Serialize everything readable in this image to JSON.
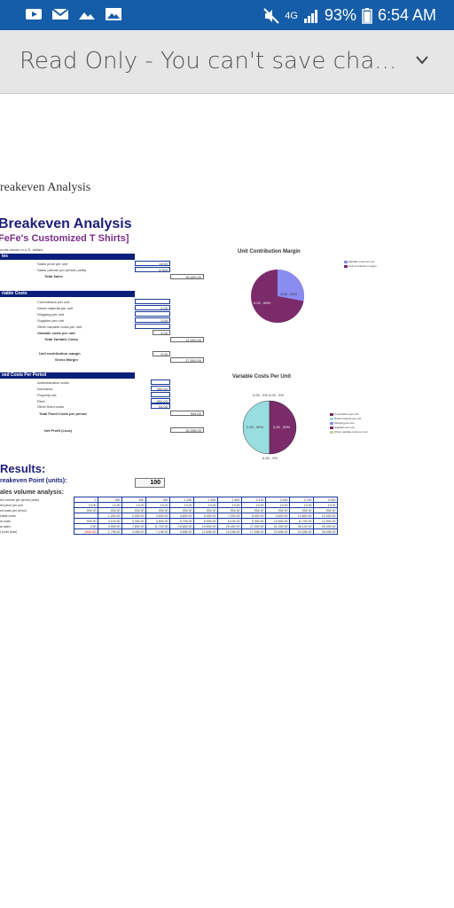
{
  "status_bar": {
    "network": "4G",
    "battery": "93%",
    "time": "6:54 AM"
  },
  "app_bar": {
    "title": "Read Only - You can't save cha..."
  },
  "doc": {
    "page_title": "reakeven Analysis",
    "heading": "Breakeven Analysis",
    "subtitle": "FeFe's Customized T Shirts]",
    "amounts_note": "ounts shown in U.S. dollars",
    "sales": {
      "header": "les",
      "price_label": "Sales price per unit",
      "price_value": "13.00",
      "volume_label": "Sales volume per period (units)",
      "volume_value": "3,000",
      "total_label": "Total Sales",
      "total_value": "39,000.00"
    },
    "variable": {
      "header": "riable Costs",
      "labels": [
        "Commission per unit",
        "Direct material per unit",
        "Shipping per unit",
        "Supplies per unit",
        "Other variable costs per unit",
        "Variable costs per unit"
      ],
      "values": [
        "",
        "2.00",
        "",
        "2.00",
        "",
        "4.00"
      ],
      "total_label": "Total Variable Costs",
      "total_value": "12,000.00",
      "ucm_label": "Unit contribution margin",
      "ucm_value": "9.00",
      "gm_label": "Gross Margin",
      "gm_value": "27,000.00"
    },
    "fixed": {
      "header": "xed Costs Per Period",
      "labels": [
        "Administrative costs",
        "Insurance",
        "Property tax",
        "Rent",
        "Other fixed costs"
      ],
      "values": [
        "",
        "300.00",
        "",
        "550.00",
        "54.00"
      ],
      "total_label": "Total Fixed Costs per period",
      "total_value": "904.00",
      "np_label": "Net Profit (Loss)",
      "np_value": "26,096.00"
    },
    "ucm_chart": {
      "title": "Unit Contribution Margin",
      "legend": [
        "Variable costs per unit",
        "Unit contribution margin"
      ],
      "label_a": "4.00 , 31%",
      "label_b": "9.00 , 69%"
    },
    "vc_chart": {
      "title": "Variable Costs Per Unit",
      "legend": [
        "Commission per unit",
        "Direct material per unit",
        "Shipping per unit",
        "Supplies per unit",
        "Other variable costs per unit"
      ],
      "label_top": "0.00 , 0%  0.00 , 0%",
      "label_left": "2.00 , 50%",
      "label_right": "2.00 , 50%",
      "label_bottom": "0.00 , 0%"
    },
    "results": {
      "heading": "Results:",
      "bep_label": "reakeven Point (units):",
      "bep_value": "100",
      "sva_label": "ales volume analysis:",
      "row_labels": [
        "les volume per period (units)",
        "les price per unit",
        "ed costs per period",
        "riable costs",
        "al costs",
        "al sales",
        "t profit (loss)"
      ],
      "rows": [
        [
          "0",
          "300",
          "600",
          "900",
          "1,200",
          "1,500",
          "1,800",
          "2,100",
          "2,400",
          "2,700",
          "3,000"
        ],
        [
          "13.00",
          "13.00",
          "13.00",
          "13.00",
          "13.00",
          "13.00",
          "13.00",
          "13.00",
          "13.00",
          "13.00",
          "13.00"
        ],
        [
          "904.00",
          "904.00",
          "904.00",
          "904.00",
          "904.00",
          "904.00",
          "904.00",
          "904.00",
          "904.00",
          "904.00",
          "904.00"
        ],
        [
          "-",
          "1,200.00",
          "2,400.00",
          "3,600.00",
          "4,800.00",
          "6,000.00",
          "7,200.00",
          "8,400.00",
          "9,600.00",
          "10,800.00",
          "12,000.00"
        ],
        [
          "904.00",
          "2,104.00",
          "3,304.00",
          "4,504.00",
          "5,704.00",
          "6,904.00",
          "8,104.00",
          "9,304.00",
          "10,504.00",
          "11,704.00",
          "12,904.00"
        ],
        [
          "0.00",
          "3,900.00",
          "7,800.00",
          "11,700.00",
          "15,600.00",
          "19,500.00",
          "23,400.00",
          "27,300.00",
          "31,200.00",
          "35,100.00",
          "39,000.00"
        ],
        [
          "(904.00)",
          "1,796.00",
          "4,496.00",
          "7,196.00",
          "9,896.00",
          "12,596.00",
          "15,296.00",
          "17,996.00",
          "20,696.00",
          "23,396.00",
          "26,096.00"
        ]
      ]
    }
  }
}
